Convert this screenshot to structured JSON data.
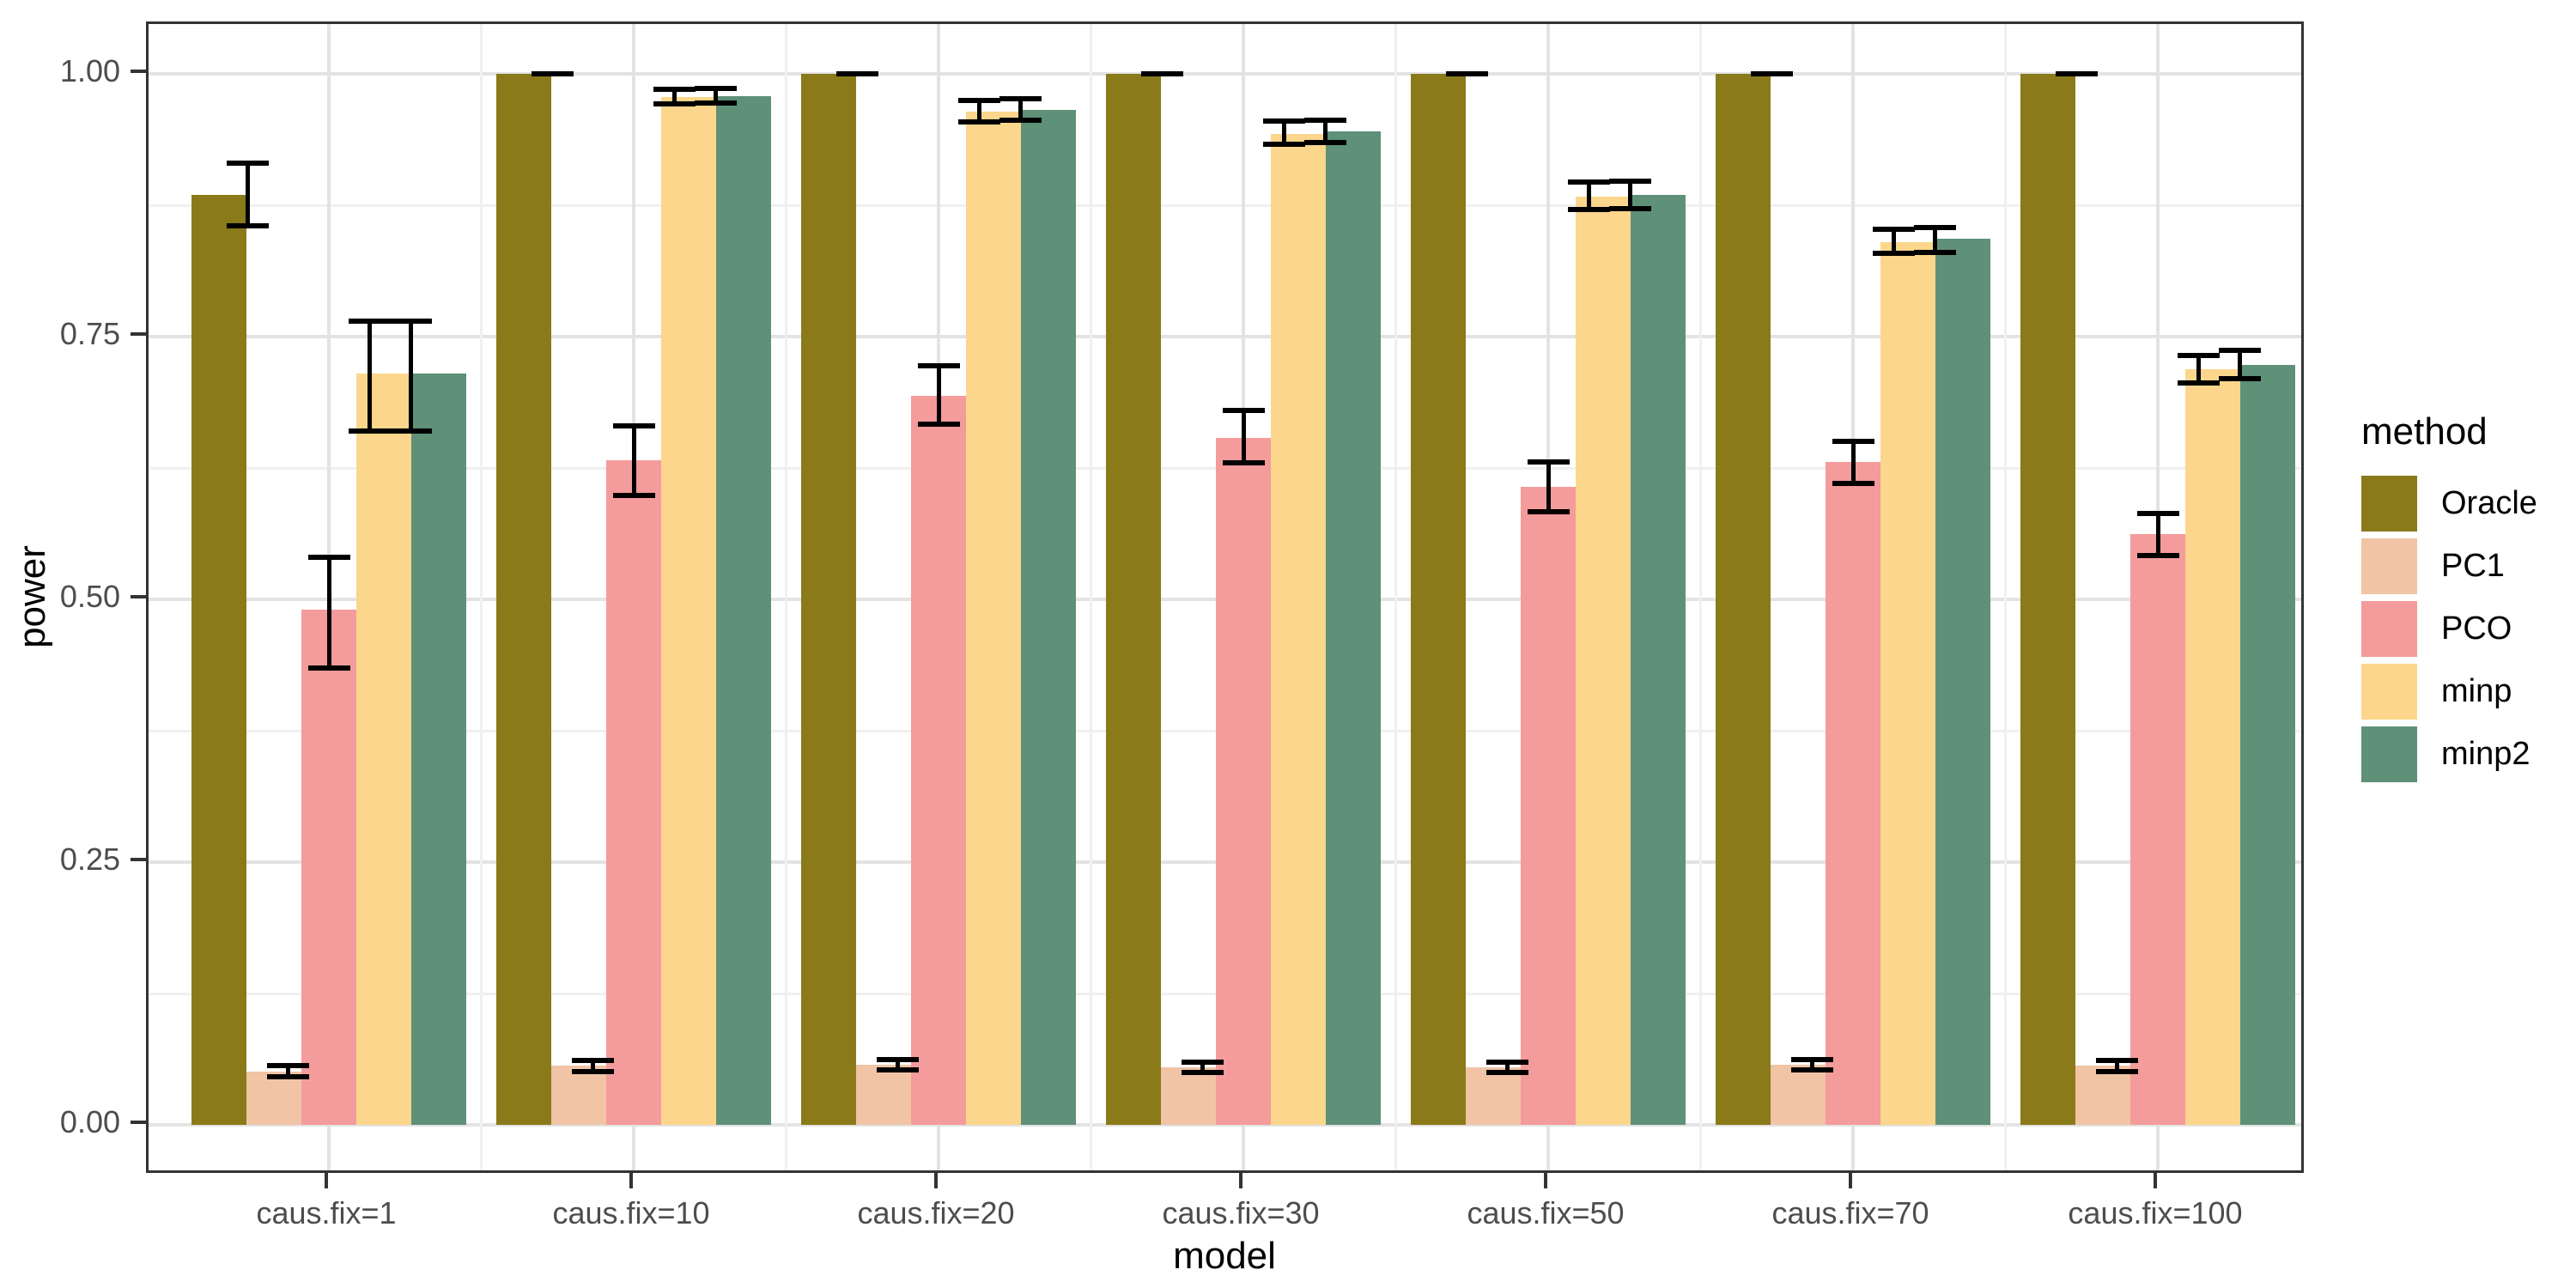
{
  "chart_data": {
    "type": "bar",
    "title": "",
    "xlabel": "model",
    "ylabel": "power",
    "ylim": [
      0,
      1.0
    ],
    "yticks": [
      0.0,
      0.25,
      0.5,
      0.75,
      1.0
    ],
    "ytick_labels": [
      "0.00",
      "0.25",
      "0.50",
      "0.75",
      "1.00"
    ],
    "yminor": [
      0.125,
      0.375,
      0.625,
      0.875
    ],
    "grid": "on",
    "legend_title": "method",
    "legend_position": "right",
    "error_bars": true,
    "categories": [
      "caus.fix=1",
      "caus.fix=10",
      "caus.fix=20",
      "caus.fix=30",
      "caus.fix=50",
      "caus.fix=70",
      "caus.fix=100"
    ],
    "series": [
      {
        "name": "Oracle",
        "color": "#8a7a19",
        "values": [
          0.885,
          1.0,
          1.0,
          1.0,
          1.0,
          1.0,
          1.0
        ],
        "ci_low": [
          0.855,
          1.0,
          1.0,
          1.0,
          1.0,
          1.0,
          1.0
        ],
        "ci_high": [
          0.915,
          1.0,
          1.0,
          1.0,
          1.0,
          1.0,
          1.0
        ]
      },
      {
        "name": "PC1",
        "color": "#f0c4a5",
        "values": [
          0.051,
          0.056,
          0.057,
          0.055,
          0.055,
          0.057,
          0.056
        ],
        "ci_low": [
          0.046,
          0.051,
          0.052,
          0.05,
          0.05,
          0.052,
          0.051
        ],
        "ci_high": [
          0.056,
          0.061,
          0.062,
          0.06,
          0.06,
          0.062,
          0.061
        ]
      },
      {
        "name": "PCO",
        "color": "#f49b9b",
        "values": [
          0.49,
          0.632,
          0.694,
          0.654,
          0.607,
          0.631,
          0.562
        ],
        "ci_low": [
          0.435,
          0.599,
          0.667,
          0.63,
          0.583,
          0.61,
          0.542
        ],
        "ci_high": [
          0.54,
          0.665,
          0.722,
          0.68,
          0.631,
          0.65,
          0.582
        ]
      },
      {
        "name": "minp",
        "color": "#fbd68c",
        "values": [
          0.715,
          0.978,
          0.964,
          0.943,
          0.883,
          0.84,
          0.719
        ],
        "ci_low": [
          0.66,
          0.971,
          0.954,
          0.933,
          0.871,
          0.829,
          0.706
        ],
        "ci_high": [
          0.765,
          0.985,
          0.975,
          0.955,
          0.897,
          0.852,
          0.732
        ]
      },
      {
        "name": "minp2",
        "color": "#5f9078",
        "values": [
          0.715,
          0.979,
          0.966,
          0.945,
          0.885,
          0.843,
          0.723
        ],
        "ci_low": [
          0.66,
          0.972,
          0.956,
          0.935,
          0.872,
          0.83,
          0.71
        ],
        "ci_high": [
          0.765,
          0.986,
          0.976,
          0.956,
          0.898,
          0.854,
          0.737
        ]
      }
    ],
    "colors": {
      "panel_background": "#ffffff",
      "panel_border": "#333333",
      "grid_major": "#e3e3e3",
      "grid_minor": "#f0f0f0",
      "tick_text": "#4d4d4d",
      "errorbar": "#000000"
    }
  }
}
